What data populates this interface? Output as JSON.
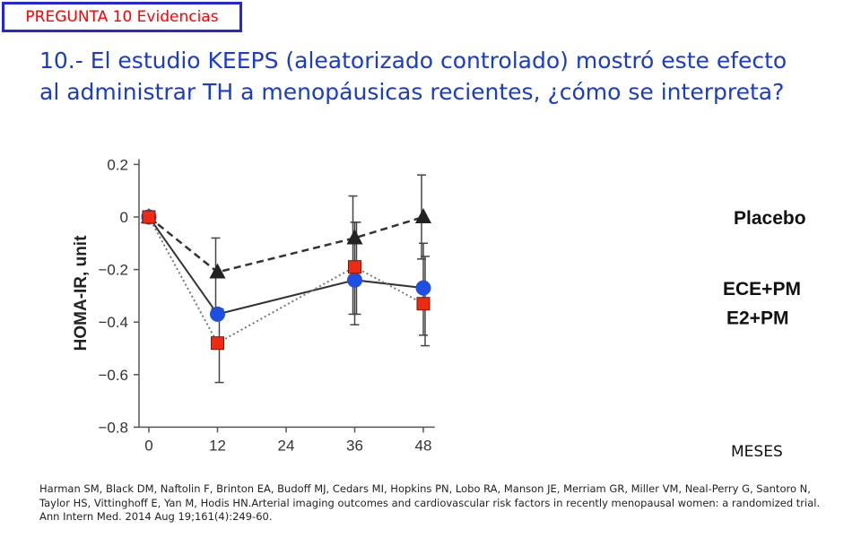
{
  "tag": "PREGUNTA 10 Evidencias",
  "question": {
    "line1": "10.- El estudio KEEPS (aleatorizado controlado) mostró este efecto",
    "line2": "al administrar TH a menopáusicas recientes, ¿cómo se interpreta?"
  },
  "x_unit_label": "MESES",
  "citation": [
    "Harman SM, Black DM, Naftolin F, Brinton EA, Budoff MJ, Cedars MI, Hopkins PN, Lobo RA, Manson JE, Merriam GR, Miller VM, Neal-Perry G, Santoro N,",
    "Taylor HS, Vittinghoff E, Yan M, Hodis HN.Arterial imaging outcomes and cardiovascular risk factors in recently menopausal women: a randomized trial.",
    "Ann Intern Med. 2014 Aug 19;161(4):249-60."
  ],
  "chart_data": {
    "type": "line",
    "ylabel": "HOMA-IR, unit",
    "xlabel": "",
    "x": [
      0,
      12,
      36,
      48
    ],
    "xticks": [
      0,
      12,
      24,
      36,
      48
    ],
    "xtick_labels": [
      "0",
      "12",
      "24",
      "36",
      "48"
    ],
    "yticks": [
      0.2,
      0,
      -0.2,
      -0.4,
      -0.6,
      -0.8
    ],
    "ytick_labels": [
      "0.2",
      "0",
      "−0.2",
      "−0.4",
      "−0.6",
      "−0.8"
    ],
    "xlim": [
      0,
      50
    ],
    "ylim": [
      -0.8,
      0.22
    ],
    "grid": false,
    "series": [
      {
        "name": "Placebo",
        "values": [
          0,
          -0.21,
          -0.08,
          0.0
        ],
        "err_low": [
          0,
          -0.35,
          -0.37,
          -0.16
        ],
        "err_high": [
          0,
          -0.08,
          0.08,
          0.16
        ],
        "color": "#222222",
        "marker": "triangle",
        "line": "dashed"
      },
      {
        "name": "ECE+PM",
        "values": [
          0,
          -0.37,
          -0.24,
          -0.27
        ],
        "err_low": [
          0,
          -0.37,
          -0.41,
          -0.45
        ],
        "err_high": [
          0,
          -0.37,
          -0.02,
          -0.1
        ],
        "color": "#1f4fe0",
        "marker": "circle",
        "line": "solid"
      },
      {
        "name": "E2+PM",
        "values": [
          0,
          -0.48,
          -0.19,
          -0.33
        ],
        "err_low": [
          0,
          -0.63,
          -0.37,
          -0.49
        ],
        "err_high": [
          0,
          -0.35,
          -0.02,
          -0.15
        ],
        "color": "#ee2a12",
        "marker": "square",
        "line": "dotted"
      }
    ]
  }
}
